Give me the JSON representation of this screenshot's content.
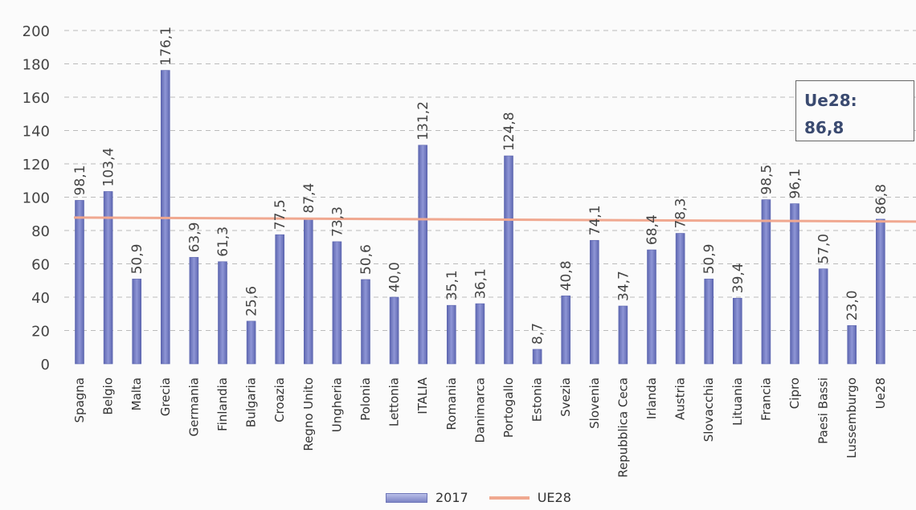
{
  "chart_data": {
    "type": "bar",
    "categories": [
      "Spagna",
      "Belgio",
      "Malta",
      "Grecia",
      "Germania",
      "Finlandia",
      "Bulgaria",
      "Croazia",
      "Regno Unito",
      "Ungheria",
      "Polonia",
      "Lettonia",
      "ITALIA",
      "Romania",
      "Danimarca",
      "Portogallo",
      "Estonia",
      "Svezia",
      "Slovenia",
      "Repubblica Ceca",
      "Irlanda",
      "Austria",
      "Slovacchia",
      "Lituania",
      "Francia",
      "Cipro",
      "Paesi Bassi",
      "Lussemburgo",
      "Ue28"
    ],
    "series": [
      {
        "name": "2017",
        "values": [
          98.1,
          103.4,
          50.9,
          176.1,
          63.9,
          61.3,
          25.6,
          77.5,
          87.4,
          73.3,
          50.6,
          40.0,
          131.2,
          35.1,
          36.1,
          124.8,
          8.7,
          40.8,
          74.1,
          34.7,
          68.4,
          78.3,
          50.9,
          39.4,
          98.5,
          96.1,
          57.0,
          23.0,
          86.8
        ],
        "labels": [
          "98,1",
          "103,4",
          "50,9",
          "176,1",
          "63,9",
          "61,3",
          "25,6",
          "77,5",
          "87,4",
          "73,3",
          "50,6",
          "40,0",
          "131,2",
          "35,1",
          "36,1",
          "124,8",
          "8,7",
          "40,8",
          "74,1",
          "34,7",
          "68,4",
          "78,3",
          "50,9",
          "39,4",
          "98,5",
          "96,1",
          "57,0",
          "23,0",
          "86,8"
        ]
      },
      {
        "name": "UE28",
        "type": "line",
        "value": 86.8
      }
    ],
    "yticks": [
      "0",
      "20",
      "40",
      "60",
      "80",
      "100",
      "120",
      "140",
      "160",
      "180",
      "200"
    ],
    "ylim": [
      0,
      200
    ],
    "grid": true,
    "legend_position": "bottom",
    "colors": {
      "bar": "#8f96d6",
      "bar_dark": "#5d66b0",
      "line": "#f0a890"
    }
  },
  "callout": {
    "label": "Ue28:",
    "value": "86,8"
  },
  "legend": {
    "bar_label": "2017",
    "line_label": "UE28"
  }
}
